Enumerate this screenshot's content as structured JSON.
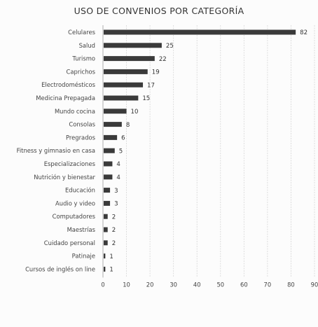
{
  "chart_data": {
    "type": "bar",
    "orientation": "horizontal",
    "title": "USO DE CONVENIOS POR CATEGORÍA",
    "xlabel": "",
    "ylabel": "",
    "xlim": [
      0,
      90
    ],
    "x_ticks": [
      0,
      10,
      20,
      30,
      40,
      50,
      60,
      70,
      80,
      90
    ],
    "grid": "vertical",
    "bar_color": "#3a3a3a",
    "categories": [
      "Celulares",
      "Salud",
      "Turismo",
      "Caprichos",
      "Electrodomésticos",
      "Medicina Prepagada",
      "Mundo cocina",
      "Consolas",
      "Pregrados",
      "Fitness y gimnasio en casa",
      "Especializaciones",
      "Nutrición y bienestar",
      "Educación",
      "Audio y video",
      "Computadores",
      "Maestrías",
      "Cuidado personal",
      "Patinaje",
      "Cursos de inglés on line"
    ],
    "values": [
      82,
      25,
      22,
      19,
      17,
      15,
      10,
      8,
      6,
      5,
      4,
      4,
      3,
      3,
      2,
      2,
      2,
      1,
      1
    ]
  }
}
